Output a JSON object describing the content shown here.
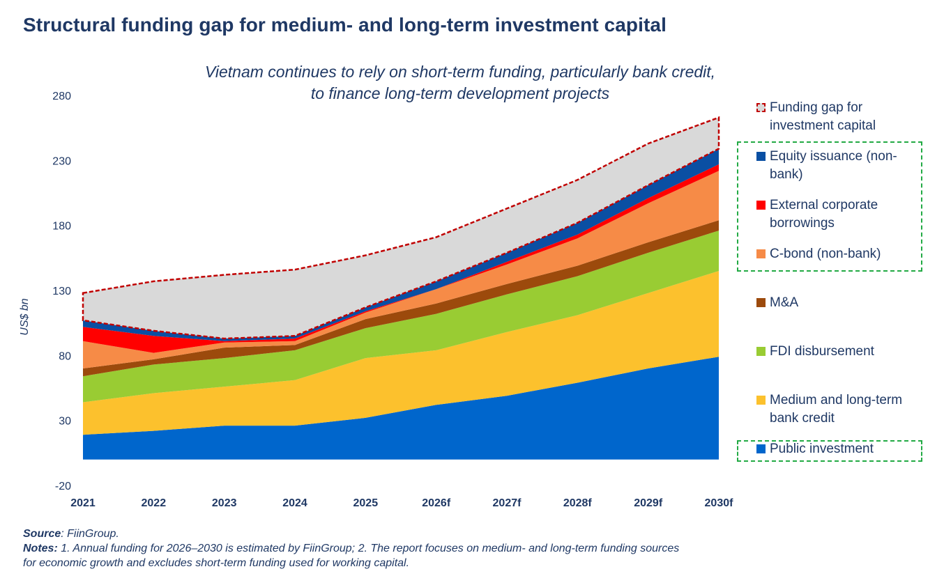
{
  "title": "Structural funding gap for medium- and long-term investment capital",
  "subtitle_lines": [
    "Vietnam continues to rely on short-term funding, particularly bank credit,",
    "to finance long-term development projects"
  ],
  "footer": {
    "source_label": "Source",
    "source_text": ": FiinGroup.",
    "notes_label": "Notes:",
    "notes_line1": " 1. Annual funding for 2026–2030 is estimated by FiinGroup; 2. The report focuses on medium- and long-term funding sources",
    "notes_line2": "for economic growth and excludes short-term funding used for working capital."
  },
  "chart_data": {
    "type": "area",
    "stacked": true,
    "ylabel": "US$ bn",
    "xlabel": "",
    "ylim": [
      -20,
      280
    ],
    "yticks": [
      -20,
      30,
      80,
      130,
      180,
      230,
      280
    ],
    "categories": [
      "2021",
      "2022",
      "2023",
      "2024",
      "2025",
      "2026f",
      "2027f",
      "2028f",
      "2029f",
      "2030f"
    ],
    "series": [
      {
        "name": "Public investment",
        "color": "#0066cc",
        "values": [
          19,
          22,
          26,
          26,
          32,
          42,
          49,
          59,
          70,
          79
        ]
      },
      {
        "name": "Medium and long-term bank credit",
        "color": "#fcc12d",
        "values": [
          25,
          29,
          30,
          35,
          46,
          42,
          49,
          52,
          58,
          66
        ]
      },
      {
        "name": "FDI disbursement",
        "color": "#99cc33",
        "values": [
          20,
          22,
          22,
          23,
          23,
          28,
          29,
          30,
          31,
          31
        ]
      },
      {
        "name": "M&A",
        "color": "#9c4a0c",
        "values": [
          6,
          4,
          8,
          4,
          7,
          8,
          8,
          8,
          8,
          8
        ]
      },
      {
        "name": "C-bond (non-bank)",
        "color": "#f68b47",
        "values": [
          21,
          5,
          4,
          3,
          5,
          11,
          15,
          21,
          30,
          38
        ]
      },
      {
        "name": "External corporate borrowings",
        "color": "#ff0000",
        "values": [
          11,
          13,
          1,
          2,
          1,
          0,
          2,
          3,
          4,
          5
        ]
      },
      {
        "name": "Equity issuance (non-bank)",
        "color": "#0a4fa3",
        "values": [
          5,
          4,
          2,
          2,
          3,
          6,
          7,
          9,
          10,
          12
        ]
      },
      {
        "name": "Funding gap for investment capital",
        "color": "#d9d9d9",
        "values": [
          21,
          38,
          49,
          51,
          40,
          34,
          34,
          33,
          32,
          24
        ]
      }
    ],
    "grid": false,
    "legend_position": "right"
  },
  "legend": [
    {
      "label": "Funding gap for investment capital",
      "color": "#d9d9d9",
      "outline": "#c00000"
    },
    {
      "label": "Equity issuance (non-bank)",
      "color": "#0a4fa3"
    },
    {
      "label": "External corporate borrowings",
      "color": "#ff0000"
    },
    {
      "label": "C-bond (non-bank)",
      "color": "#f68b47"
    },
    {
      "label": "M&A",
      "color": "#9c4a0c"
    },
    {
      "label": "FDI disbursement",
      "color": "#99cc33"
    },
    {
      "label": "Medium and long-term bank credit",
      "color": "#fcc12d"
    },
    {
      "label": "Public investment",
      "color": "#0066cc"
    }
  ],
  "colors": {
    "text": "#1f3864",
    "gap_outline": "#c00000",
    "highlight_box": "#22aa44"
  }
}
